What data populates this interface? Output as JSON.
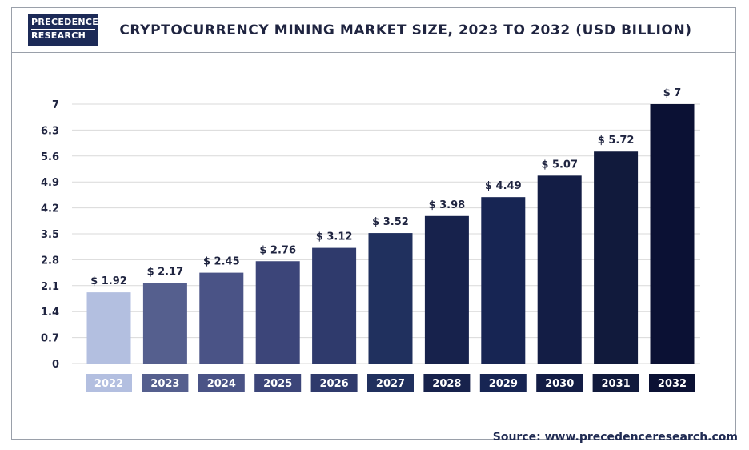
{
  "header": {
    "logo_line1": "PRECEDENCE",
    "logo_line2": "RESEARCH",
    "title": "CRYPTOCURRENCY MINING MARKET SIZE, 2023 TO 2032 (USD BILLION)"
  },
  "source": {
    "label": "Source:",
    "url": "www.precedenceresearch.com"
  },
  "colors": {
    "background": "#ffffff",
    "grid": "#d9d9d9",
    "text": "#1f2440"
  },
  "chart_data": {
    "type": "bar",
    "title": "CRYPTOCURRENCY MINING MARKET SIZE, 2023 TO 2032 (USD BILLION)",
    "xlabel": "",
    "ylabel": "",
    "categories": [
      "2022",
      "2023",
      "2024",
      "2025",
      "2026",
      "2027",
      "2028",
      "2029",
      "2030",
      "2031",
      "2032"
    ],
    "values": [
      1.92,
      2.17,
      2.45,
      2.76,
      3.12,
      3.52,
      3.98,
      4.49,
      5.07,
      5.72,
      7
    ],
    "value_labels": [
      "$ 1.92",
      "$ 2.17",
      "$ 2.45",
      "$ 2.76",
      "$ 3.12",
      "$ 3.52",
      "$ 3.98",
      "$ 4.49",
      "$ 5.07",
      "$ 5.72",
      "$ 7"
    ],
    "bar_colors": [
      "#b3bfe0",
      "#555f8e",
      "#4a5386",
      "#3c4579",
      "#2f3a6c",
      "#20305e",
      "#17224c",
      "#172553",
      "#131d45",
      "#111a3c",
      "#0b1134"
    ],
    "yticks": [
      0,
      0.7,
      1.4,
      2.1,
      2.8,
      3.5,
      4.2,
      4.9,
      5.6,
      6.3,
      7
    ],
    "ytick_labels": [
      "0",
      "0.7",
      "1.4",
      "2.1",
      "2.8",
      "3.5",
      "4.2",
      "4.9",
      "5.6",
      "6.3",
      "7"
    ],
    "ylim": [
      0,
      7
    ],
    "grid": true,
    "legend": "none"
  }
}
